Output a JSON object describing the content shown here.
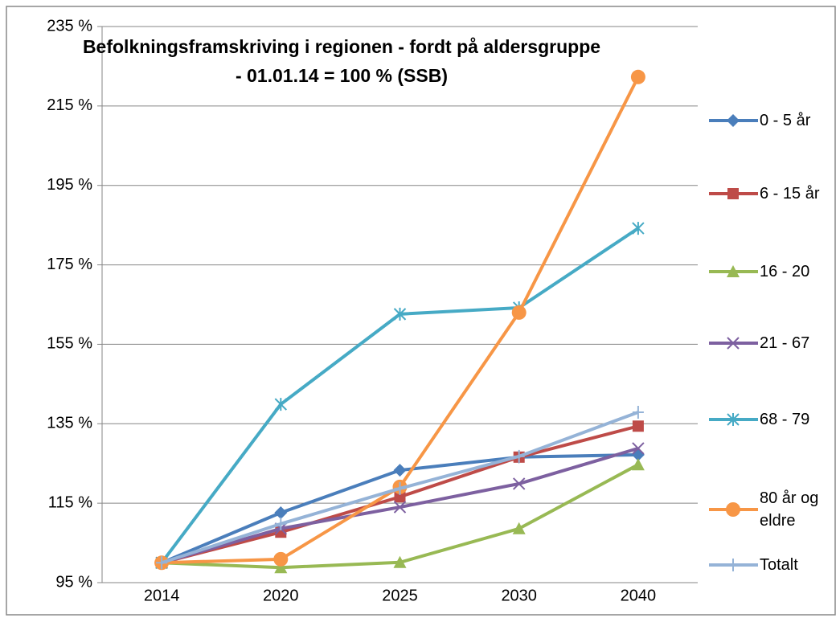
{
  "chart_data": {
    "type": "line",
    "title": "Befolkningsframskriving i regionen - fordt på aldersgruppe - 01.01.14 = 100 % (SSB)",
    "categories": [
      "2014",
      "2020",
      "2025",
      "2030",
      "2040"
    ],
    "ylim": [
      95,
      235
    ],
    "yticks": [
      {
        "value": 95,
        "label": "95 %"
      },
      {
        "value": 115,
        "label": "115 %"
      },
      {
        "value": 135,
        "label": "135 %"
      },
      {
        "value": 155,
        "label": "155 %"
      },
      {
        "value": 175,
        "label": "175 %"
      },
      {
        "value": 195,
        "label": "195 %"
      },
      {
        "value": 215,
        "label": "215 %"
      },
      {
        "value": 235,
        "label": "235 %"
      }
    ],
    "grid": true,
    "legend": "right",
    "series": [
      {
        "name": "0 - 5 år",
        "color": "#4a7ebb",
        "marker": "diamond",
        "values": [
          100,
          112.6,
          123.3,
          126.6,
          127.2
        ]
      },
      {
        "name": "6 - 15 år",
        "color": "#be4b48",
        "marker": "square",
        "values": [
          100,
          107.7,
          116.6,
          126.6,
          134.4
        ]
      },
      {
        "name": "16 - 20",
        "color": "#98b954",
        "marker": "triangle",
        "values": [
          100,
          98.8,
          100.1,
          108.6,
          124.7
        ]
      },
      {
        "name": "21 - 67",
        "color": "#7d60a0",
        "marker": "x",
        "values": [
          100,
          108.6,
          114,
          119.9,
          128.8
        ]
      },
      {
        "name": "68 - 79",
        "color": "#46aac5",
        "marker": "star",
        "values": [
          100,
          139.9,
          162.6,
          164.2,
          184.2
        ]
      },
      {
        "name": "80 år og eldre",
        "color": "#f79646",
        "marker": "circle",
        "values": [
          100,
          100.9,
          119.1,
          163,
          222.3
        ]
      },
      {
        "name": "Totalt",
        "color": "#95b3d7",
        "marker": "plus",
        "values": [
          100,
          109.8,
          118.7,
          126.8,
          137.9
        ]
      }
    ]
  }
}
